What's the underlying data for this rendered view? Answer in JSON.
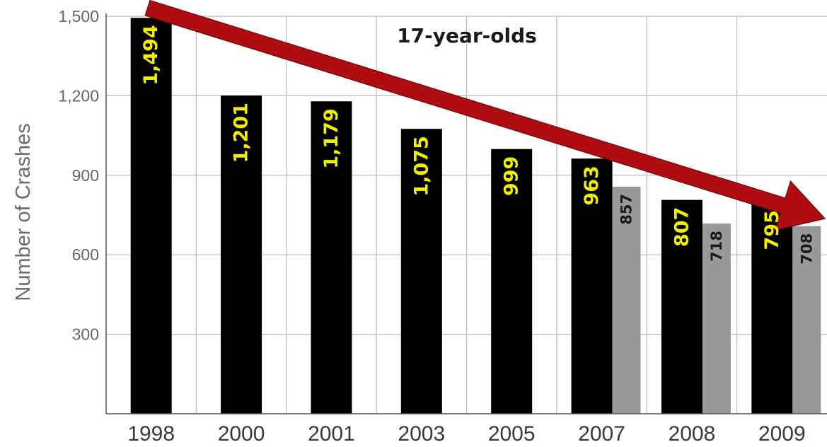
{
  "chart_data": {
    "type": "bar",
    "title": "17-year-olds",
    "ylabel": "Number of Crashes",
    "xlabel": "",
    "ylim": [
      0,
      1500
    ],
    "yticks": [
      "300",
      "600",
      "900",
      "1,200",
      "1,500"
    ],
    "ytick_values": [
      300,
      600,
      900,
      1200,
      1500
    ],
    "grid": true,
    "categories": [
      "1998",
      "2000",
      "2001",
      "2003",
      "2005",
      "2007",
      "2008",
      "2009"
    ],
    "series": [
      {
        "values": [
          1494,
          1201,
          1179,
          1075,
          999,
          963,
          807,
          795
        ],
        "labels": [
          "1,494",
          "1,201",
          "1,179",
          "1,075",
          "999",
          "963",
          "807",
          "795"
        ],
        "color": "#000000",
        "label_color": "#f2ee00"
      },
      {
        "values": [
          null,
          null,
          null,
          null,
          null,
          857,
          718,
          708
        ],
        "labels": [
          "",
          "",
          "",
          "",
          "",
          "857",
          "718",
          "708"
        ],
        "color": "#999999",
        "label_color": "#1a1a1a"
      }
    ],
    "trend_arrow": {
      "from_category": "1998",
      "to_category": "2009",
      "color": "#b00d12",
      "direction": "decreasing"
    }
  }
}
